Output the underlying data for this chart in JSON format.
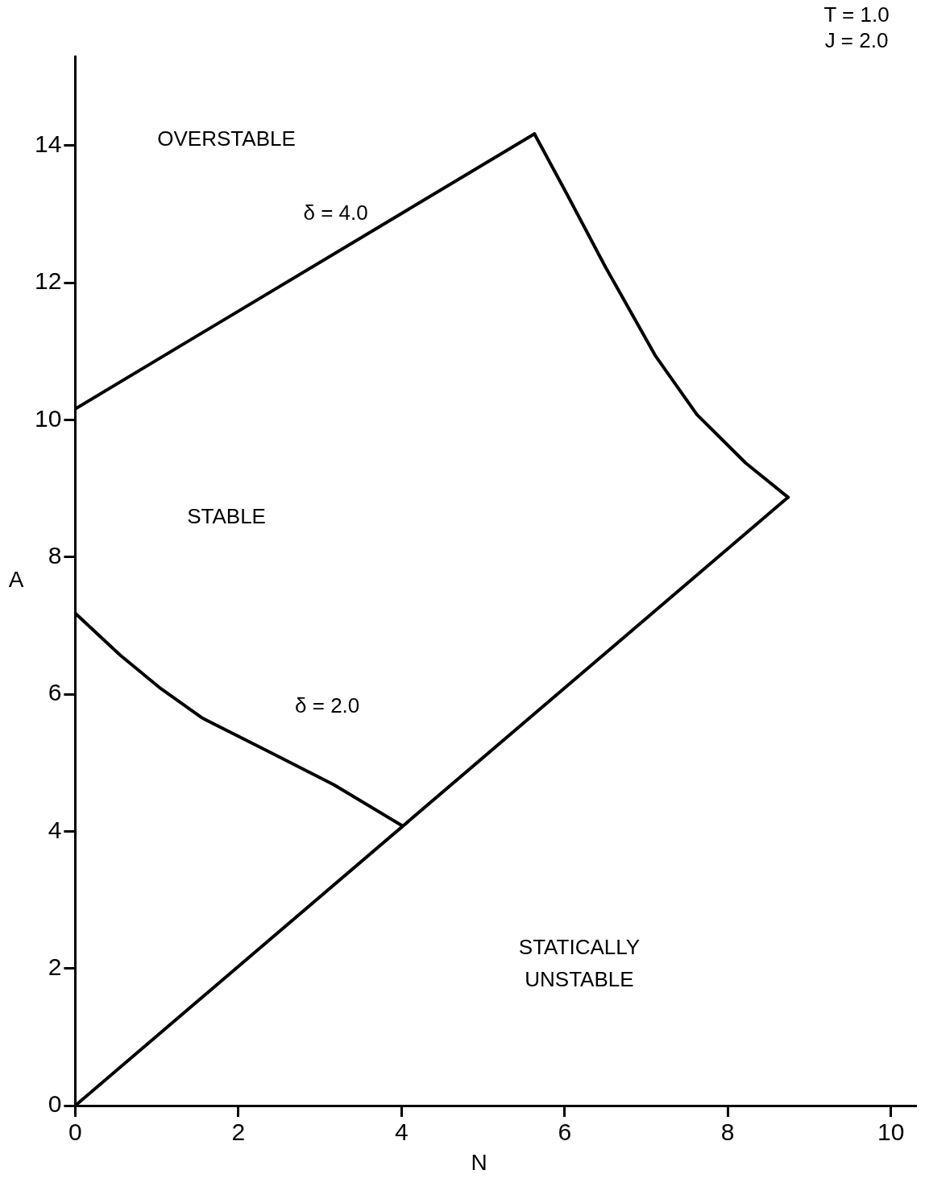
{
  "chart_data": {
    "type": "line",
    "xlabel": "N",
    "ylabel": "A",
    "xlim": [
      0,
      10.3
    ],
    "ylim": [
      0,
      15.3
    ],
    "xticks": [
      0,
      2,
      4,
      6,
      8,
      10
    ],
    "yticks": [
      0,
      2,
      4,
      6,
      8,
      10,
      12,
      14
    ],
    "grid": false,
    "legend": false,
    "marker": "none",
    "line_style": "solid",
    "series": [
      {
        "color": "#000000",
        "x": [
          0,
          8.74
        ],
        "values": [
          0,
          8.87
        ]
      },
      {
        "color": "#000000",
        "x": [
          0,
          5.63
        ],
        "values": [
          10.16,
          14.17
        ]
      },
      {
        "color": "#000000",
        "x": [
          5.63,
          6.02,
          6.5,
          7.11,
          7.62,
          8.22,
          8.74
        ],
        "values": [
          14.17,
          13.31,
          12.23,
          10.94,
          10.08,
          9.37,
          8.87
        ]
      },
      {
        "color": "#000000",
        "x": [
          0,
          0.55,
          1.05,
          1.56,
          2.36,
          3.17,
          4.01
        ],
        "values": [
          7.18,
          6.57,
          6.08,
          5.65,
          5.17,
          4.68,
          4.08
        ]
      }
    ],
    "annotations": [
      "T = 1.0",
      "J = 2.0",
      "OVERSTABLE",
      "δ = 4.0",
      "STABLE",
      "δ = 2.0",
      "STATICALLY\nUNSTABLE"
    ]
  }
}
